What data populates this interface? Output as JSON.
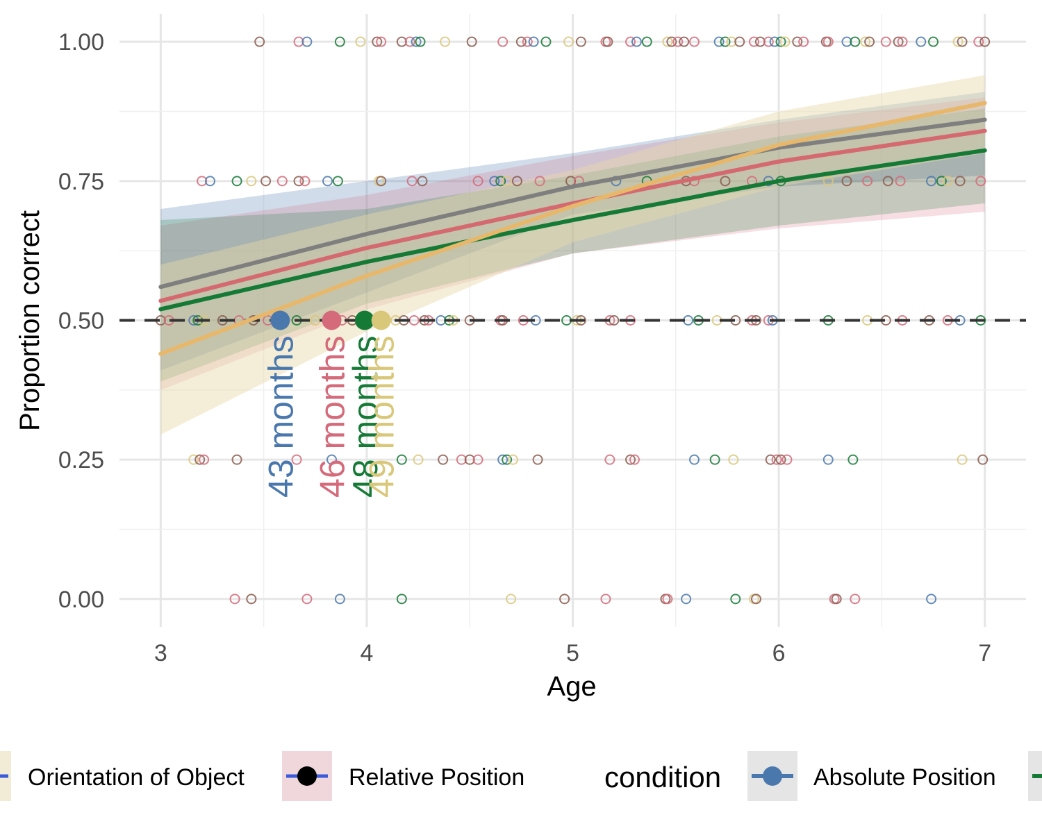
{
  "chart_data": {
    "type": "line",
    "xlabel": "Age",
    "ylabel": "Proportion correct",
    "xlim": [
      2.8,
      7.2
    ],
    "ylim": [
      -0.05,
      1.05
    ],
    "x_ticks": [
      "3",
      "4",
      "5",
      "6",
      "7"
    ],
    "y_ticks": [
      "0.00",
      "0.25",
      "0.50",
      "0.75",
      "1.00"
    ],
    "grid": true,
    "chance_line": 0.5,
    "series": [
      {
        "key": "absolute",
        "color": "#7f7f7f",
        "fill": "#4a78ad",
        "fill_opacity": 0.26,
        "x": [
          3,
          4,
          5,
          6,
          7
        ],
        "y": [
          0.56,
          0.655,
          0.74,
          0.81,
          0.86
        ],
        "lower": [
          0.41,
          0.55,
          0.69,
          0.74,
          0.76
        ],
        "upper": [
          0.7,
          0.75,
          0.8,
          0.86,
          0.91
        ]
      },
      {
        "key": "relative",
        "color": "#d46a70",
        "fill": "#d46a80",
        "fill_opacity": 0.22,
        "x": [
          3,
          4,
          5,
          6,
          7
        ],
        "y": [
          0.535,
          0.63,
          0.71,
          0.785,
          0.84
        ],
        "lower": [
          0.375,
          0.52,
          0.62,
          0.665,
          0.695
        ],
        "upper": [
          0.67,
          0.725,
          0.795,
          0.855,
          0.9
        ]
      },
      {
        "key": "third",
        "color": "#167a37",
        "fill": "#167a37",
        "fill_opacity": 0.22,
        "x": [
          3,
          4,
          5,
          6,
          7
        ],
        "y": [
          0.52,
          0.605,
          0.68,
          0.75,
          0.805
        ],
        "lower": [
          0.39,
          0.53,
          0.62,
          0.67,
          0.71
        ],
        "upper": [
          0.68,
          0.7,
          0.76,
          0.83,
          0.88
        ]
      },
      {
        "key": "orientation",
        "color": "#e7b86b",
        "fill": "#e6d9a8",
        "fill_opacity": 0.45,
        "x": [
          3,
          4,
          5,
          6,
          7
        ],
        "y": [
          0.44,
          0.58,
          0.705,
          0.815,
          0.89
        ],
        "lower": [
          0.295,
          0.48,
          0.64,
          0.74,
          0.8
        ],
        "upper": [
          0.6,
          0.69,
          0.77,
          0.875,
          0.94
        ]
      }
    ],
    "crossings": [
      {
        "x": 3.58,
        "y": 0.5,
        "label": "43 months",
        "color": "#4a78ad"
      },
      {
        "x": 3.83,
        "y": 0.5,
        "label": "46 months",
        "color": "#d46a7a"
      },
      {
        "x": 3.99,
        "y": 0.5,
        "label": "48 months",
        "color": "#167a37"
      },
      {
        "x": 4.07,
        "y": 0.5,
        "label": "49 months",
        "color": "#d9c77a"
      }
    ],
    "points": [
      {
        "y": 1.0,
        "x": [
          3.48,
          3.67,
          3.71,
          3.87,
          3.97,
          4.05,
          4.07,
          4.17,
          4.21,
          4.24,
          4.26,
          4.38,
          4.51,
          4.66,
          4.75,
          4.78,
          4.81,
          4.87,
          4.98,
          5.04,
          5.16,
          5.17,
          5.28,
          5.31,
          5.36,
          5.46,
          5.48,
          5.51,
          5.54,
          5.59,
          5.71,
          5.74,
          5.77,
          5.81,
          5.88,
          5.91,
          5.95,
          5.98,
          6.01,
          6.03,
          6.09,
          6.12,
          6.23,
          6.24,
          6.33,
          6.37,
          6.42,
          6.44,
          6.52,
          6.58,
          6.6,
          6.69,
          6.75,
          6.87,
          6.89,
          6.97,
          7.0
        ]
      },
      {
        "y": 0.75,
        "x": [
          3.2,
          3.24,
          3.37,
          3.44,
          3.51,
          3.59,
          3.67,
          3.7,
          3.81,
          3.86,
          4.06,
          4.07,
          4.22,
          4.27,
          4.54,
          4.62,
          4.65,
          4.68,
          4.73,
          4.84,
          4.99,
          5.03,
          5.21,
          5.36,
          5.45,
          5.55,
          5.59,
          5.74,
          5.87,
          5.95,
          6.01,
          6.24,
          6.33,
          6.43,
          6.53,
          6.59,
          6.74,
          6.79,
          6.82,
          6.88,
          6.98
        ]
      },
      {
        "y": 0.5,
        "x": [
          3.0,
          3.04,
          3.16,
          3.18,
          3.21,
          3.3,
          3.38,
          3.45,
          3.52,
          3.58,
          3.66,
          3.75,
          3.81,
          3.88,
          3.93,
          3.97,
          4.01,
          4.08,
          4.14,
          4.18,
          4.23,
          4.28,
          4.3,
          4.36,
          4.4,
          4.42,
          4.5,
          4.65,
          4.66,
          4.76,
          4.82,
          4.97,
          5.02,
          5.04,
          5.18,
          5.2,
          5.28,
          5.56,
          5.61,
          5.7,
          5.79,
          5.87,
          5.89,
          5.95,
          5.97,
          6.24,
          6.43,
          6.52,
          6.6,
          6.73,
          6.82,
          6.88,
          6.98
        ]
      },
      {
        "y": 0.25,
        "x": [
          3.16,
          3.19,
          3.21,
          3.37,
          3.66,
          3.83,
          4.17,
          4.25,
          4.37,
          4.46,
          4.5,
          4.54,
          4.66,
          4.68,
          4.71,
          4.83,
          5.18,
          5.28,
          5.3,
          5.59,
          5.69,
          5.78,
          5.96,
          5.99,
          6.01,
          6.04,
          6.24,
          6.36,
          6.89,
          6.99
        ]
      },
      {
        "y": 0.0,
        "x": [
          3.36,
          3.44,
          3.71,
          3.87,
          4.17,
          4.7,
          4.96,
          5.16,
          5.45,
          5.46,
          5.55,
          5.79,
          5.88,
          5.89,
          6.27,
          6.28,
          6.37,
          6.74
        ]
      }
    ],
    "point_colors": [
      "#8a5a4e",
      "#d46a7a",
      "#4a78ad",
      "#167a37",
      "#d9c77a",
      "#8a5a4e",
      "#d46a7a"
    ],
    "legend": [
      {
        "label": "Orientation of Object",
        "key_bg": "#f2ebd6",
        "glyph": "blue-dash"
      },
      {
        "label": "Relative Position",
        "key_bg": "#f0d7dc",
        "glyph": "black-dot-blue-line"
      },
      {
        "title": "condition"
      },
      {
        "label": "Absolute Position",
        "key_bg": "#e5e5e5",
        "glyph": "blue-dot-line"
      },
      {
        "label": "",
        "key_bg": "#e5e5e5",
        "glyph": "green-line"
      }
    ]
  }
}
